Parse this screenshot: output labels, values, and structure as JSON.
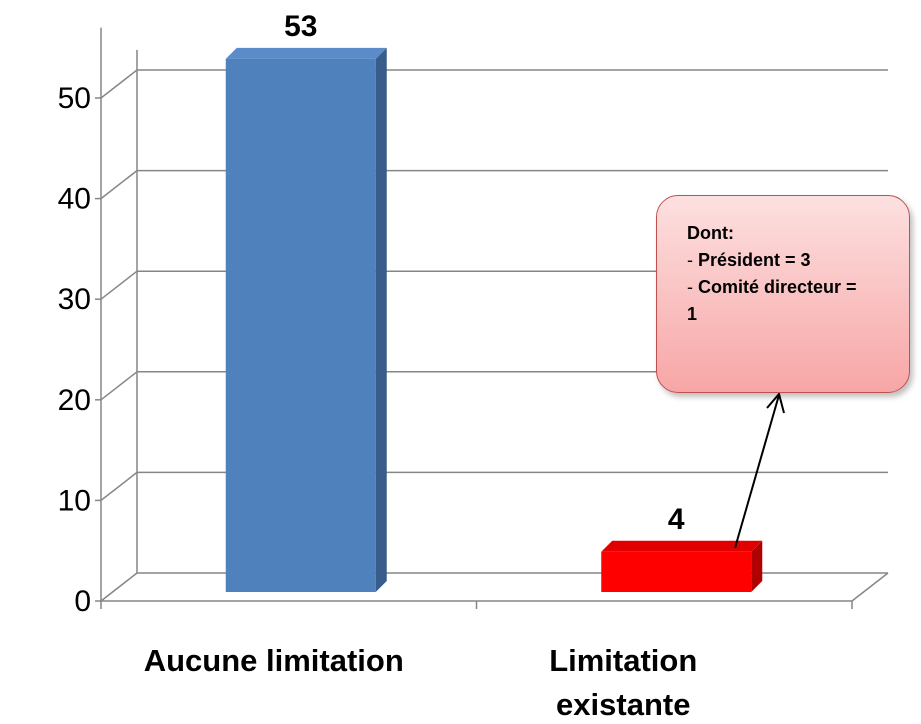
{
  "chart_data": {
    "type": "bar",
    "categories": [
      "Aucune limitation",
      "Limitation existante"
    ],
    "values": [
      53,
      4
    ],
    "data_labels": [
      "53",
      "4"
    ],
    "ylim": [
      0,
      50
    ],
    "yticks": [
      0,
      10,
      20,
      30,
      40,
      50
    ],
    "grid": true,
    "bar_colors": [
      "#4f81bd",
      "#ff0000"
    ],
    "style": "3d"
  },
  "callout": {
    "title": "Dont:",
    "items": [
      {
        "prefix": "- ",
        "text": "Président = 3"
      },
      {
        "prefix": "- ",
        "text": "Comité directeur = 1"
      }
    ]
  }
}
